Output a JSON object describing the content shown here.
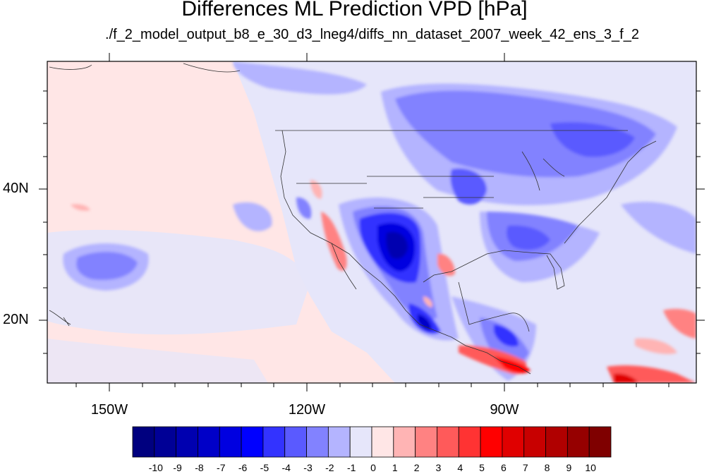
{
  "title": "Differences ML Prediction VPD [hPa]",
  "subtitle": "./f_2_model_output_b8_e_30_d3_lneg4/diffs_nn_dataset_2007_week_42_ens_3_f_2",
  "axes": {
    "lat_labels": [
      "40N",
      "20N"
    ],
    "lon_labels": [
      "150W",
      "120W",
      "90W"
    ]
  },
  "colorbar": {
    "labels": [
      "-10",
      "-9",
      "-8",
      "-7",
      "-6",
      "-5",
      "-4",
      "-3",
      "-2",
      "-1",
      "0",
      "1",
      "2",
      "3",
      "4",
      "5",
      "6",
      "7",
      "8",
      "9",
      "10"
    ],
    "colors": [
      "#00007f",
      "#000096",
      "#0000b0",
      "#0000c8",
      "#0000e0",
      "#0000ff",
      "#3333ff",
      "#5a5aff",
      "#8282ff",
      "#b4b4ff",
      "#e6e6fa",
      "#ffe6e6",
      "#ffb4b4",
      "#ff8282",
      "#ff5a5a",
      "#ff3333",
      "#ff0000",
      "#e00000",
      "#c80000",
      "#b00000",
      "#960000",
      "#7f0000"
    ]
  }
}
